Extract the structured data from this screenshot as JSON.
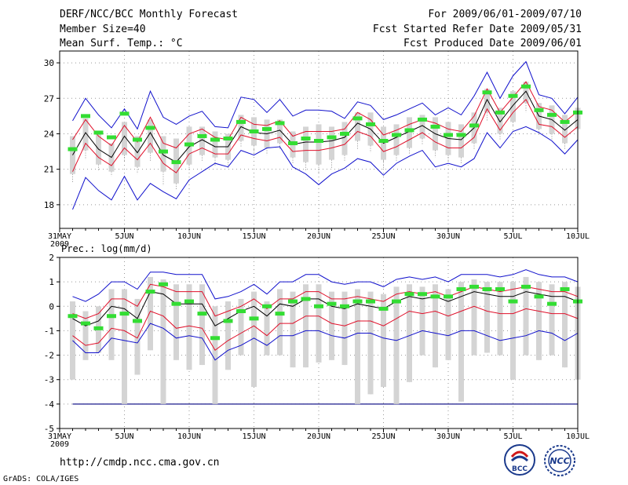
{
  "header": {
    "title": "DERF/NCC/BCC Monthly Forecast",
    "member_size": "Member Size=40",
    "variable": "Mean Surf. Temp.: °C",
    "period": "For 2009/06/01-2009/07/10",
    "started": "Fcst Started Refer Date 2009/05/31",
    "produced": "Fcst Produced Date 2009/06/01"
  },
  "footer": {
    "url": "http://cmdp.ncc.cma.gov.cn",
    "credit": "GrADS: COLA/IGES",
    "logo_bcc": "BCC",
    "logo_ncc": "NCC"
  },
  "colors": {
    "box": "#d4d4d4",
    "whisker": "#8a8a8a",
    "mean": "#000000",
    "spread": "#e0102a",
    "extreme": "#1010cc",
    "obs": "#33dd33",
    "grid": "#999999",
    "ref": "#1a1a8c"
  },
  "chart_data": [
    {
      "type": "box-ensemble-line",
      "panel": "temperature",
      "title": "Mean Surf. Temp.: °C",
      "ylim": [
        16,
        31
      ],
      "yticks": [
        18,
        21,
        24,
        27,
        30
      ],
      "xrange": [
        0,
        40
      ],
      "xticks": [
        {
          "day": 0,
          "label": "31MAY",
          "sub": "2009"
        },
        {
          "day": 5,
          "label": "5JUN"
        },
        {
          "day": 10,
          "label": "10JUN"
        },
        {
          "day": 15,
          "label": "15JUN"
        },
        {
          "day": 20,
          "label": "20JUN"
        },
        {
          "day": 25,
          "label": "25JUN"
        },
        {
          "day": 30,
          "label": "30JUN"
        },
        {
          "day": 35,
          "label": "5JUL"
        },
        {
          "day": 40,
          "label": "10JUL"
        }
      ],
      "days": [
        1,
        2,
        3,
        4,
        5,
        6,
        7,
        8,
        9,
        10,
        11,
        12,
        13,
        14,
        15,
        16,
        17,
        18,
        19,
        20,
        21,
        22,
        23,
        24,
        25,
        26,
        27,
        28,
        29,
        30,
        31,
        32,
        33,
        34,
        35,
        36,
        37,
        38,
        39,
        40
      ],
      "ens_max": [
        25.1,
        27.0,
        25.6,
        24.5,
        26.1,
        24.4,
        27.6,
        25.4,
        24.8,
        25.5,
        25.9,
        24.6,
        24.5,
        27.1,
        26.9,
        25.8,
        26.9,
        25.5,
        26.0,
        26.0,
        25.9,
        25.3,
        26.7,
        26.4,
        25.2,
        25.6,
        26.1,
        26.6,
        25.6,
        26.2,
        25.6,
        27.2,
        29.2,
        27.0,
        28.9,
        30.1,
        27.3,
        27.0,
        25.7,
        27.1
      ],
      "spread_hi": [
        23.5,
        25.2,
        23.8,
        23.0,
        24.7,
        23.3,
        25.4,
        23.2,
        22.8,
        24.0,
        24.4,
        23.7,
        23.5,
        25.4,
        24.8,
        24.7,
        25.1,
        23.8,
        24.2,
        24.2,
        24.2,
        24.4,
        25.8,
        25.2,
        23.9,
        24.3,
        24.8,
        25.2,
        24.9,
        24.4,
        24.2,
        25.5,
        27.8,
        25.8,
        27.1,
        28.4,
        26.3,
        26.0,
        25.0,
        25.9
      ],
      "ens_mean": [
        22.2,
        24.1,
        22.7,
        22.0,
        23.8,
        22.4,
        24.1,
        22.2,
        21.6,
        22.9,
        23.5,
        22.9,
        22.9,
        24.6,
        24.1,
        24.0,
        24.3,
        23.1,
        23.3,
        23.3,
        23.4,
        23.7,
        24.9,
        24.4,
        23.2,
        23.7,
        24.2,
        24.7,
        24.0,
        23.6,
        23.5,
        24.5,
        26.9,
        25.0,
        26.4,
        27.6,
        25.5,
        25.2,
        24.3,
        25.2
      ],
      "spread_lo": [
        20.8,
        23.2,
        22.0,
        21.3,
        22.8,
        21.8,
        23.2,
        21.5,
        20.7,
        22.3,
        22.8,
        22.3,
        22.3,
        23.9,
        23.6,
        23.4,
        23.7,
        22.5,
        22.6,
        22.6,
        22.8,
        23.1,
        24.2,
        23.8,
        22.5,
        22.9,
        23.5,
        24.1,
        23.3,
        22.8,
        22.8,
        23.7,
        26.1,
        24.3,
        25.8,
        26.9,
        24.8,
        24.6,
        23.7,
        24.6
      ],
      "ens_min": [
        17.6,
        20.3,
        19.2,
        18.4,
        20.4,
        18.4,
        19.8,
        19.1,
        18.5,
        20.1,
        20.8,
        21.5,
        21.2,
        22.6,
        22.2,
        22.8,
        22.9,
        21.2,
        20.6,
        19.7,
        20.6,
        21.1,
        21.9,
        21.6,
        20.5,
        21.5,
        22.1,
        22.6,
        21.2,
        21.5,
        21.2,
        21.9,
        24.1,
        22.8,
        24.2,
        24.6,
        24.1,
        23.4,
        22.3,
        23.5
      ],
      "box_hi": [
        23.8,
        25.3,
        24.0,
        23.2,
        25.0,
        23.8,
        25.2,
        23.8,
        23.6,
        24.6,
        24.6,
        24.2,
        24.0,
        25.6,
        25.4,
        25.2,
        25.2,
        24.2,
        24.6,
        24.8,
        24.6,
        25.0,
        25.8,
        25.8,
        24.6,
        24.8,
        25.4,
        25.6,
        25.4,
        25.0,
        24.8,
        25.8,
        27.8,
        26.2,
        27.6,
        28.4,
        26.6,
        26.4,
        25.6,
        26.2
      ],
      "box_lo": [
        20.6,
        22.6,
        21.4,
        20.8,
        22.2,
        21.2,
        22.4,
        20.8,
        19.8,
        21.4,
        22.2,
        22.0,
        21.8,
        23.4,
        23.0,
        22.8,
        23.2,
        22.0,
        21.6,
        21.4,
        21.8,
        22.2,
        23.4,
        23.0,
        21.8,
        22.2,
        22.8,
        23.6,
        22.6,
        22.2,
        22.0,
        23.2,
        25.8,
        24.0,
        25.0,
        26.6,
        24.4,
        24.0,
        23.2,
        24.4
      ],
      "whisker_lo": [
        19.8,
        21.8,
        20.8,
        20.4,
        21.6,
        20.6,
        21.6,
        19.6,
        19.2,
        20.8,
        21.6,
        21.2,
        21.0,
        22.8,
        22.2,
        22.2,
        22.6,
        21.4,
        20.8,
        20.6,
        21.0,
        21.6,
        22.6,
        22.4,
        21.0,
        21.6,
        22.2,
        23.0,
        22.0,
        21.6,
        21.4,
        22.6,
        25.0,
        23.4,
        24.6,
        25.8,
        23.8,
        23.4,
        22.6,
        23.8
      ],
      "obs": [
        22.7,
        25.5,
        24.1,
        23.7,
        25.7,
        23.5,
        24.5,
        22.5,
        21.6,
        23.1,
        23.8,
        23.5,
        23.6,
        25.0,
        24.2,
        24.4,
        24.9,
        23.2,
        23.6,
        23.4,
        23.7,
        24.0,
        25.3,
        24.8,
        23.4,
        23.9,
        24.3,
        25.2,
        24.6,
        23.9,
        23.9,
        24.7,
        27.5,
        25.8,
        27.2,
        28.0,
        26.0,
        25.6,
        25.0,
        25.8
      ]
    },
    {
      "type": "box-ensemble-line",
      "panel": "precipitation",
      "title": "Prec.: log(mm/d)",
      "ylim": [
        -5,
        2
      ],
      "yticks": [
        -5,
        -4,
        -3,
        -2,
        -1,
        0,
        1,
        2
      ],
      "ytick_labels": [
        "-5",
        "-4",
        "-3",
        "-2",
        "-1",
        "0",
        "1",
        "2"
      ],
      "xrange": [
        0,
        40
      ],
      "xticks": [
        {
          "day": 0,
          "label": "31MAY",
          "sub": "2009"
        },
        {
          "day": 5,
          "label": "5JUN"
        },
        {
          "day": 10,
          "label": "10JUN"
        },
        {
          "day": 15,
          "label": "15JUN"
        },
        {
          "day": 20,
          "label": "20JUN"
        },
        {
          "day": 25,
          "label": "25JUN"
        },
        {
          "day": 30,
          "label": "30JUN"
        },
        {
          "day": 35,
          "label": "5JUL"
        },
        {
          "day": 40,
          "label": "10JUL"
        }
      ],
      "reference_line": -4,
      "days": [
        1,
        2,
        3,
        4,
        5,
        6,
        7,
        8,
        9,
        10,
        11,
        12,
        13,
        14,
        15,
        16,
        17,
        18,
        19,
        20,
        21,
        22,
        23,
        24,
        25,
        26,
        27,
        28,
        29,
        30,
        31,
        32,
        33,
        34,
        35,
        36,
        37,
        38,
        39,
        40
      ],
      "ens_max": [
        0.4,
        0.2,
        0.5,
        1.0,
        1.0,
        0.7,
        1.4,
        1.4,
        1.3,
        1.3,
        1.3,
        0.3,
        0.4,
        0.6,
        0.9,
        0.5,
        1.0,
        1.0,
        1.3,
        1.3,
        1.0,
        0.9,
        1.0,
        1.0,
        0.8,
        1.1,
        1.2,
        1.1,
        1.2,
        1.0,
        1.3,
        1.3,
        1.3,
        1.2,
        1.3,
        1.5,
        1.3,
        1.2,
        1.2,
        1.0
      ],
      "spread_hi": [
        -0.3,
        -0.5,
        -0.3,
        0.3,
        0.3,
        0.0,
        0.9,
        0.8,
        0.6,
        0.6,
        0.6,
        -0.4,
        -0.2,
        0.0,
        0.3,
        -0.1,
        0.3,
        0.3,
        0.6,
        0.6,
        0.3,
        0.3,
        0.4,
        0.3,
        0.2,
        0.5,
        0.6,
        0.5,
        0.6,
        0.4,
        0.6,
        0.8,
        0.7,
        0.6,
        0.7,
        0.8,
        0.7,
        0.6,
        0.6,
        0.4
      ],
      "ens_mean": [
        -0.5,
        -0.8,
        -0.6,
        0.0,
        -0.1,
        -0.5,
        0.6,
        0.5,
        0.1,
        0.1,
        0.1,
        -0.8,
        -0.5,
        -0.2,
        0.0,
        -0.4,
        0.1,
        0.0,
        0.3,
        0.3,
        0.0,
        -0.1,
        0.1,
        0.0,
        -0.1,
        0.2,
        0.4,
        0.3,
        0.4,
        0.2,
        0.4,
        0.6,
        0.5,
        0.4,
        0.4,
        0.6,
        0.5,
        0.4,
        0.4,
        0.2
      ],
      "spread_lo": [
        -1.2,
        -1.6,
        -1.5,
        -0.9,
        -1.0,
        -1.3,
        -0.2,
        -0.4,
        -0.9,
        -0.8,
        -0.9,
        -1.8,
        -1.4,
        -1.1,
        -0.8,
        -1.2,
        -0.7,
        -0.7,
        -0.4,
        -0.4,
        -0.7,
        -0.8,
        -0.6,
        -0.6,
        -0.8,
        -0.5,
        -0.2,
        -0.3,
        -0.2,
        -0.4,
        -0.2,
        0.0,
        -0.2,
        -0.3,
        -0.3,
        -0.1,
        -0.2,
        -0.3,
        -0.3,
        -0.5
      ],
      "ens_min": [
        -1.4,
        -1.9,
        -1.9,
        -1.3,
        -1.4,
        -1.5,
        -0.7,
        -0.9,
        -1.3,
        -1.2,
        -1.3,
        -2.2,
        -1.8,
        -1.6,
        -1.3,
        -1.6,
        -1.2,
        -1.2,
        -1.0,
        -1.0,
        -1.2,
        -1.3,
        -1.1,
        -1.1,
        -1.3,
        -1.4,
        -1.2,
        -1.0,
        -1.1,
        -1.2,
        -1.0,
        -1.0,
        -1.2,
        -1.4,
        -1.3,
        -1.2,
        -1.0,
        -1.1,
        -1.4,
        -1.1
      ],
      "box_hi": [
        0.2,
        -0.2,
        0.0,
        0.7,
        0.7,
        0.3,
        1.2,
        1.1,
        0.9,
        0.9,
        0.9,
        0.0,
        0.2,
        0.3,
        0.6,
        0.2,
        0.7,
        0.6,
        0.9,
        0.9,
        0.6,
        0.6,
        0.7,
        0.6,
        0.5,
        0.8,
        0.9,
        0.8,
        0.9,
        0.7,
        1.0,
        1.1,
        1.0,
        1.0,
        1.0,
        1.2,
        1.0,
        0.9,
        1.0,
        0.8
      ],
      "box_lo": [
        -3.0,
        -2.2,
        -1.9,
        -2.2,
        -4.0,
        -2.8,
        -1.8,
        -4.0,
        -2.2,
        -2.6,
        -2.4,
        -4.0,
        -2.6,
        -2.0,
        -3.3,
        -2.0,
        -2.0,
        -2.5,
        -2.5,
        -2.3,
        -2.2,
        -2.4,
        -4.0,
        -3.6,
        -3.3,
        -4.0,
        -3.1,
        -2.0,
        -2.5,
        -2.2,
        -3.9,
        -2.0,
        -1.9,
        -2.0,
        -3.0,
        -2.0,
        -2.2,
        -2.0,
        -2.5,
        -3.0
      ],
      "whisker_lo": [
        -3.0,
        -2.2,
        -1.9,
        -2.2,
        -4.0,
        -2.8,
        -1.8,
        -4.0,
        -2.2,
        -2.6,
        -2.4,
        -4.0,
        -2.6,
        -2.0,
        -3.3,
        -2.0,
        -2.0,
        -2.5,
        -2.5,
        -2.3,
        -2.2,
        -2.4,
        -4.0,
        -3.6,
        -3.3,
        -4.0,
        -3.1,
        -2.0,
        -2.5,
        -2.2,
        -3.9,
        -2.0,
        -1.9,
        -2.0,
        -3.0,
        -2.0,
        -2.2,
        -2.0,
        -2.5,
        -3.0
      ],
      "obs": [
        -0.4,
        -0.7,
        -0.9,
        -0.4,
        -0.3,
        -0.6,
        0.6,
        0.9,
        0.1,
        0.2,
        -0.3,
        -1.3,
        -0.6,
        -0.2,
        -0.5,
        0.0,
        -0.3,
        0.2,
        0.3,
        0.0,
        0.1,
        0.0,
        0.2,
        0.2,
        -0.1,
        0.2,
        0.5,
        0.5,
        0.4,
        0.4,
        0.7,
        0.8,
        0.7,
        0.7,
        0.2,
        0.8,
        0.4,
        0.1,
        0.7,
        0.2
      ]
    }
  ]
}
